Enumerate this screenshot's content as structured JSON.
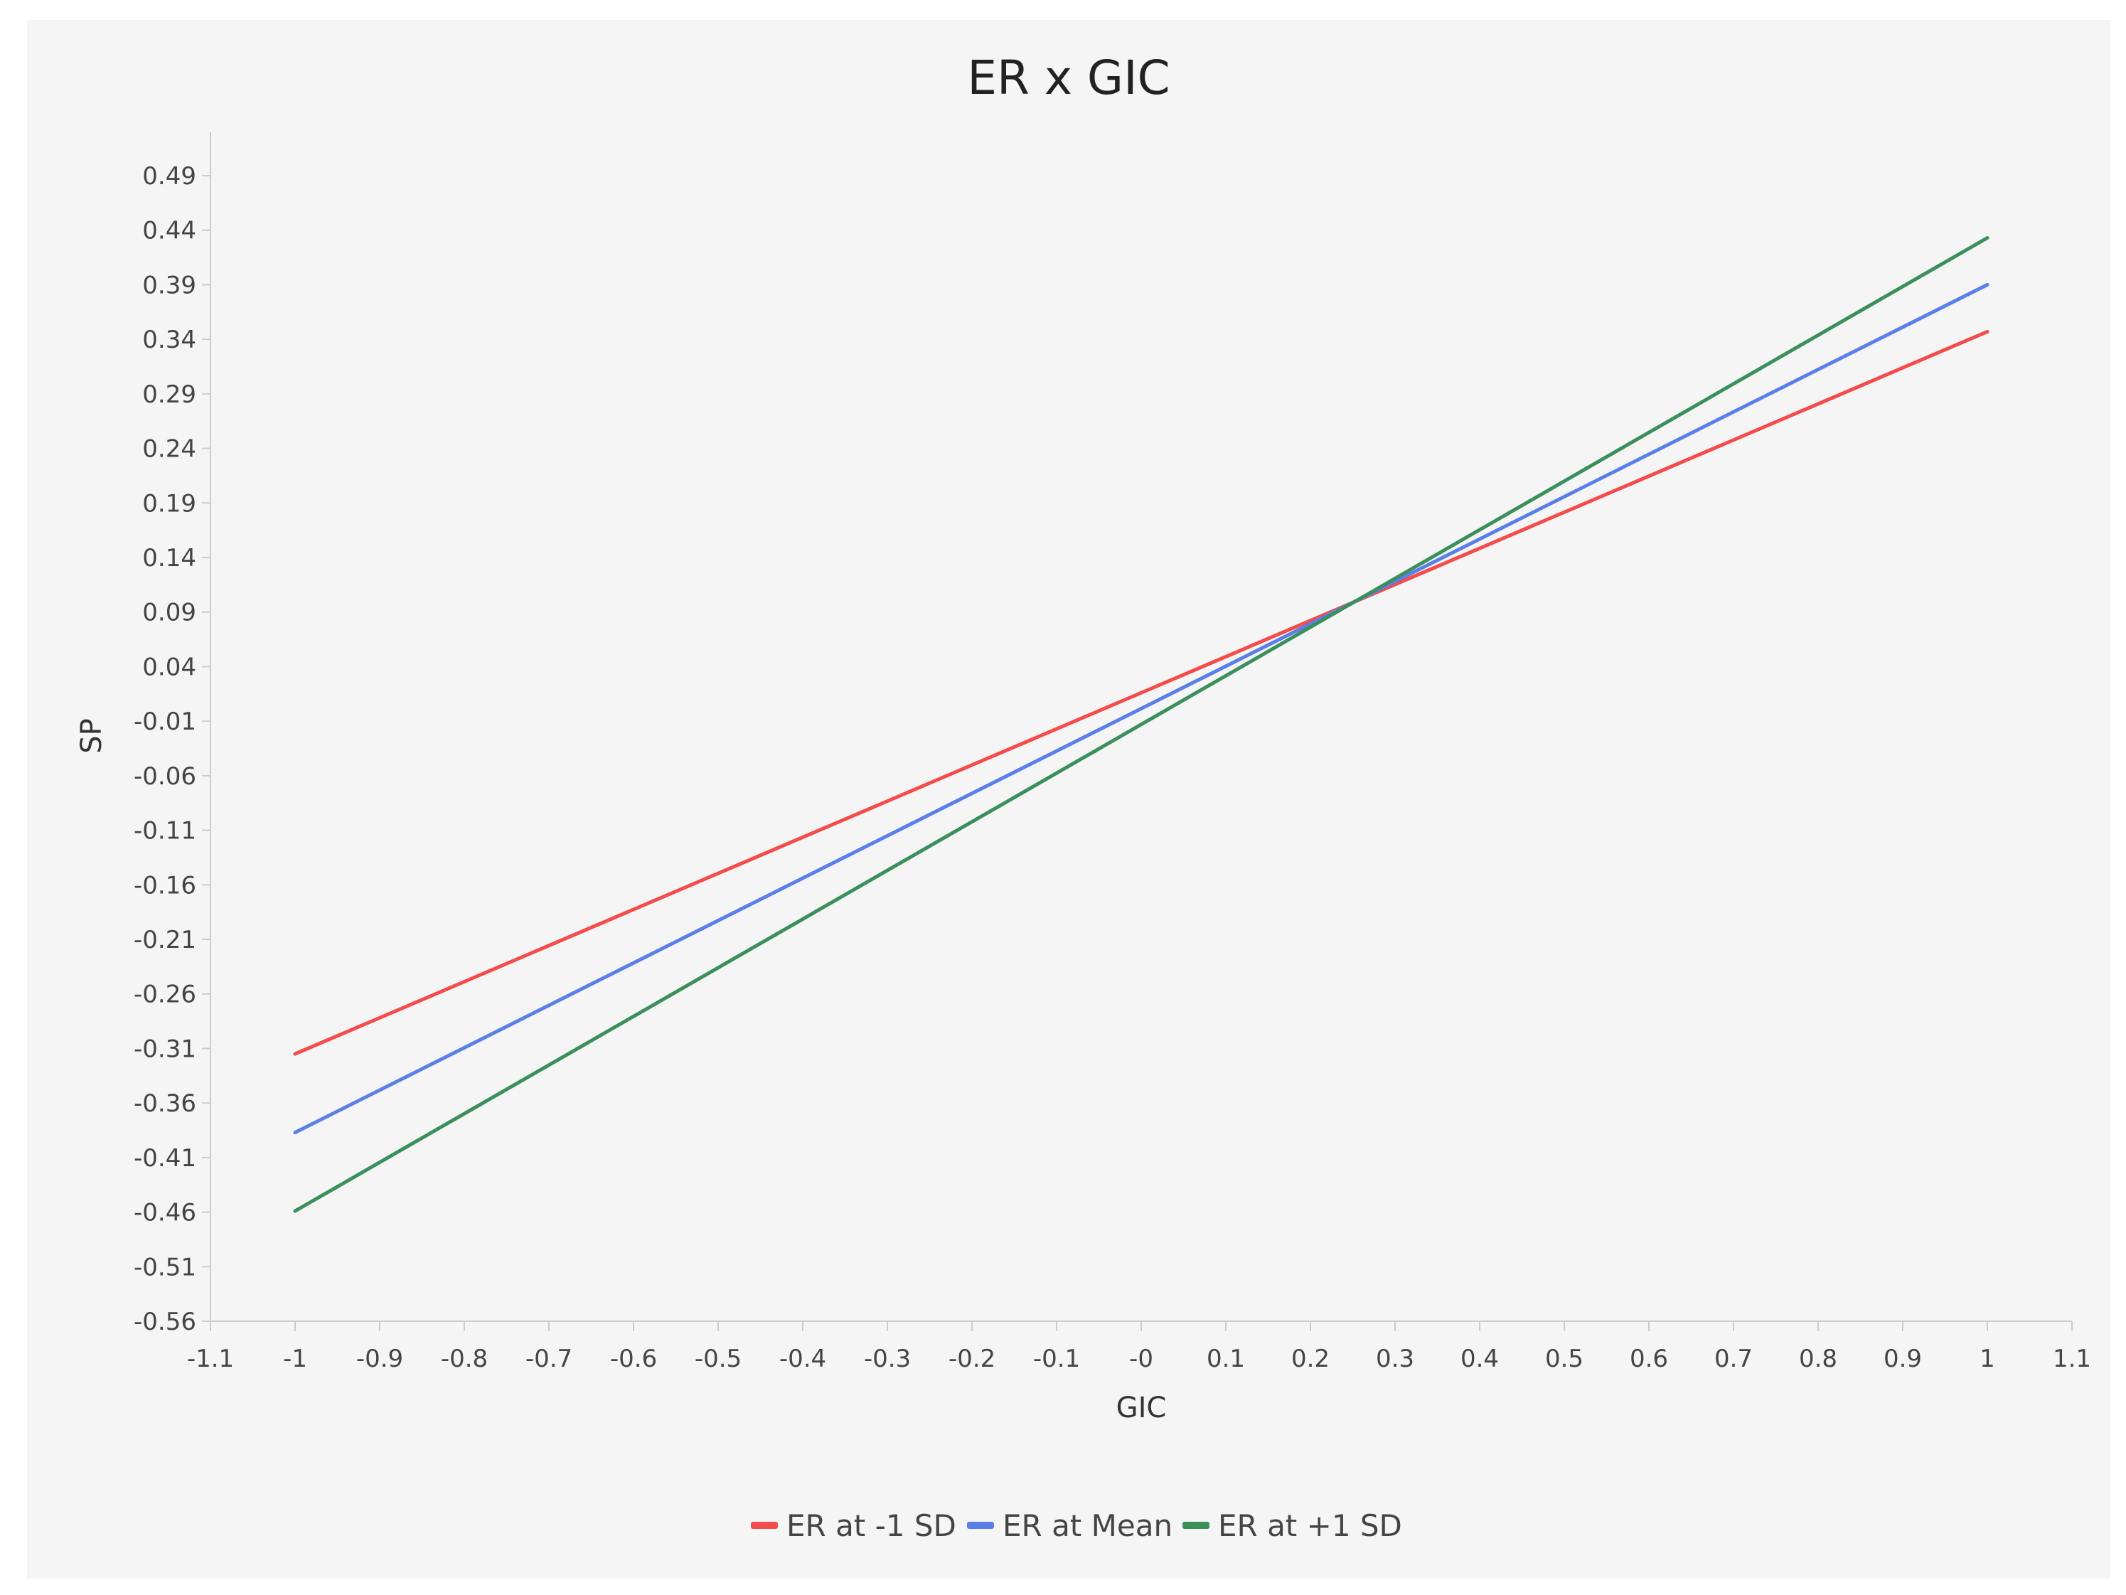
{
  "chart_data": {
    "type": "line",
    "title": "ER x GIC",
    "xlabel": "GIC",
    "ylabel": "SP",
    "xlim": [
      -1.1,
      1.1
    ],
    "ylim": [
      -0.56,
      0.535
    ],
    "x_ticks": [
      "-1.1",
      "-1",
      "-0.9",
      "-0.8",
      "-0.7",
      "-0.6",
      "-0.5",
      "-0.4",
      "-0.3",
      "-0.2",
      "-0.1",
      "-0",
      "0.1",
      "0.2",
      "0.3",
      "0.4",
      "0.5",
      "0.6",
      "0.7",
      "0.8",
      "0.9",
      "1",
      "1.1"
    ],
    "y_ticks": [
      "-0.56",
      "-0.51",
      "-0.46",
      "-0.41",
      "-0.36",
      "-0.31",
      "-0.26",
      "-0.21",
      "-0.16",
      "-0.11",
      "-0.06",
      "-0.01",
      "0.04",
      "0.09",
      "0.14",
      "0.19",
      "0.24",
      "0.29",
      "0.34",
      "0.39",
      "0.44",
      "0.49"
    ],
    "grid": false,
    "legend_position": "bottom-center",
    "series": [
      {
        "name": "ER at -1 SD",
        "color": "#f44b4b",
        "x": [
          -1,
          1
        ],
        "y": [
          -0.315,
          0.347
        ]
      },
      {
        "name": "ER at Mean",
        "color": "#5b7fe8",
        "x": [
          -1,
          1
        ],
        "y": [
          -0.387,
          0.39
        ]
      },
      {
        "name": "ER at +1 SD",
        "color": "#3a8f5a",
        "x": [
          -1,
          1
        ],
        "y": [
          -0.459,
          0.433
        ]
      }
    ]
  }
}
